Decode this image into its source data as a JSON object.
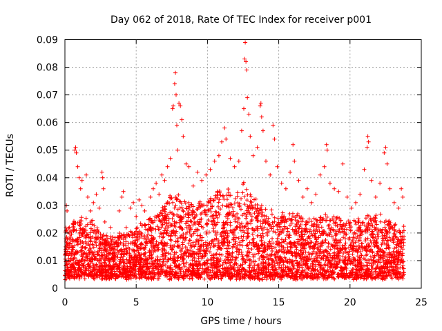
{
  "chart_data": {
    "type": "scatter",
    "title": "Day 062 of 2018, Rate Of TEC Index for receiver p001",
    "xlabel": "GPS time / hours",
    "ylabel": "ROTI / TECUs",
    "xlim": [
      0,
      25
    ],
    "ylim": [
      0,
      0.09
    ],
    "xticks": [
      0,
      5,
      10,
      15,
      20,
      25
    ],
    "yticks": [
      0,
      0.01,
      0.02,
      0.03,
      0.04,
      0.05,
      0.06,
      0.07,
      0.08,
      0.09
    ],
    "xtick_labels": [
      "0",
      "5",
      "10",
      "15",
      "20",
      "25"
    ],
    "ytick_labels": [
      "0",
      "0.01",
      "0.02",
      "0.03",
      "0.04",
      "0.05",
      "0.06",
      "0.07",
      "0.08",
      "0.09"
    ],
    "grid": true,
    "marker": "+",
    "color": "#ff0000",
    "series": [
      {
        "name": "ROTI",
        "points": [
          [
            0.0,
            0.012
          ],
          [
            0.1,
            0.03
          ],
          [
            0.15,
            0.028
          ],
          [
            0.3,
            0.018
          ],
          [
            0.5,
            0.015
          ],
          [
            0.6,
            0.022
          ],
          [
            0.7,
            0.05
          ],
          [
            0.75,
            0.051
          ],
          [
            0.8,
            0.049
          ],
          [
            0.9,
            0.044
          ],
          [
            1.0,
            0.04
          ],
          [
            1.1,
            0.036
          ],
          [
            1.2,
            0.039
          ],
          [
            1.3,
            0.021
          ],
          [
            1.5,
            0.041
          ],
          [
            1.6,
            0.033
          ],
          [
            1.8,
            0.028
          ],
          [
            2.0,
            0.031
          ],
          [
            2.2,
            0.034
          ],
          [
            2.4,
            0.029
          ],
          [
            2.6,
            0.042
          ],
          [
            2.65,
            0.04
          ],
          [
            2.7,
            0.036
          ],
          [
            2.8,
            0.024
          ],
          [
            3.0,
            0.018
          ],
          [
            3.2,
            0.022
          ],
          [
            3.5,
            0.016
          ],
          [
            3.8,
            0.028
          ],
          [
            4.0,
            0.033
          ],
          [
            4.1,
            0.035
          ],
          [
            4.3,
            0.022
          ],
          [
            4.6,
            0.029
          ],
          [
            4.8,
            0.031
          ],
          [
            5.0,
            0.026
          ],
          [
            5.2,
            0.032
          ],
          [
            5.4,
            0.03
          ],
          [
            5.6,
            0.028
          ],
          [
            5.8,
            0.021
          ],
          [
            6.0,
            0.033
          ],
          [
            6.2,
            0.036
          ],
          [
            6.4,
            0.038
          ],
          [
            6.6,
            0.034
          ],
          [
            6.8,
            0.041
          ],
          [
            7.0,
            0.039
          ],
          [
            7.2,
            0.044
          ],
          [
            7.4,
            0.047
          ],
          [
            7.55,
            0.065
          ],
          [
            7.6,
            0.066
          ],
          [
            7.7,
            0.074
          ],
          [
            7.75,
            0.078
          ],
          [
            7.8,
            0.07
          ],
          [
            7.85,
            0.059
          ],
          [
            7.9,
            0.05
          ],
          [
            8.0,
            0.067
          ],
          [
            8.1,
            0.066
          ],
          [
            8.2,
            0.061
          ],
          [
            8.3,
            0.055
          ],
          [
            8.5,
            0.045
          ],
          [
            8.7,
            0.044
          ],
          [
            9.0,
            0.037
          ],
          [
            9.3,
            0.042
          ],
          [
            9.6,
            0.039
          ],
          [
            9.9,
            0.041
          ],
          [
            10.2,
            0.043
          ],
          [
            10.5,
            0.046
          ],
          [
            10.8,
            0.048
          ],
          [
            11.0,
            0.053
          ],
          [
            11.2,
            0.058
          ],
          [
            11.3,
            0.054
          ],
          [
            11.6,
            0.047
          ],
          [
            11.9,
            0.044
          ],
          [
            12.2,
            0.046
          ],
          [
            12.4,
            0.057
          ],
          [
            12.55,
            0.065
          ],
          [
            12.6,
            0.083
          ],
          [
            12.65,
            0.089
          ],
          [
            12.7,
            0.082
          ],
          [
            12.75,
            0.079
          ],
          [
            12.8,
            0.069
          ],
          [
            12.9,
            0.063
          ],
          [
            13.0,
            0.055
          ],
          [
            13.2,
            0.048
          ],
          [
            13.5,
            0.051
          ],
          [
            13.7,
            0.066
          ],
          [
            13.75,
            0.067
          ],
          [
            13.8,
            0.062
          ],
          [
            13.9,
            0.057
          ],
          [
            14.1,
            0.046
          ],
          [
            14.4,
            0.041
          ],
          [
            14.6,
            0.059
          ],
          [
            14.7,
            0.054
          ],
          [
            14.9,
            0.044
          ],
          [
            15.2,
            0.038
          ],
          [
            15.5,
            0.036
          ],
          [
            15.8,
            0.042
          ],
          [
            16.0,
            0.052
          ],
          [
            16.1,
            0.046
          ],
          [
            16.4,
            0.039
          ],
          [
            16.7,
            0.033
          ],
          [
            17.0,
            0.036
          ],
          [
            17.3,
            0.031
          ],
          [
            17.6,
            0.034
          ],
          [
            17.9,
            0.041
          ],
          [
            18.2,
            0.044
          ],
          [
            18.35,
            0.052
          ],
          [
            18.4,
            0.05
          ],
          [
            18.6,
            0.038
          ],
          [
            18.9,
            0.036
          ],
          [
            19.2,
            0.035
          ],
          [
            19.5,
            0.045
          ],
          [
            19.8,
            0.033
          ],
          [
            20.1,
            0.029
          ],
          [
            20.4,
            0.031
          ],
          [
            20.7,
            0.034
          ],
          [
            21.0,
            0.043
          ],
          [
            21.2,
            0.051
          ],
          [
            21.25,
            0.055
          ],
          [
            21.3,
            0.053
          ],
          [
            21.5,
            0.039
          ],
          [
            21.8,
            0.033
          ],
          [
            22.1,
            0.038
          ],
          [
            22.4,
            0.049
          ],
          [
            22.5,
            0.051
          ],
          [
            22.6,
            0.045
          ],
          [
            22.8,
            0.036
          ],
          [
            23.1,
            0.031
          ],
          [
            23.4,
            0.029
          ],
          [
            23.6,
            0.036
          ],
          [
            23.7,
            0.033
          ]
        ]
      }
    ],
    "dense_band": {
      "description": "dense cloud of points between ~0.004 and ~0.03 TECU across the day",
      "profile_hours": [
        0,
        1,
        2,
        3,
        4,
        5,
        6,
        7,
        7.5,
        8,
        9,
        10,
        11,
        12,
        12.5,
        13,
        14,
        15,
        16,
        17,
        18,
        19,
        20,
        21,
        22,
        23,
        23.8
      ],
      "profile_upper": [
        0.022,
        0.026,
        0.024,
        0.018,
        0.02,
        0.022,
        0.025,
        0.03,
        0.036,
        0.034,
        0.03,
        0.033,
        0.036,
        0.035,
        0.038,
        0.034,
        0.03,
        0.026,
        0.028,
        0.025,
        0.027,
        0.026,
        0.024,
        0.026,
        0.027,
        0.024,
        0.022
      ],
      "lower": 0.004,
      "count": 4200
    }
  }
}
